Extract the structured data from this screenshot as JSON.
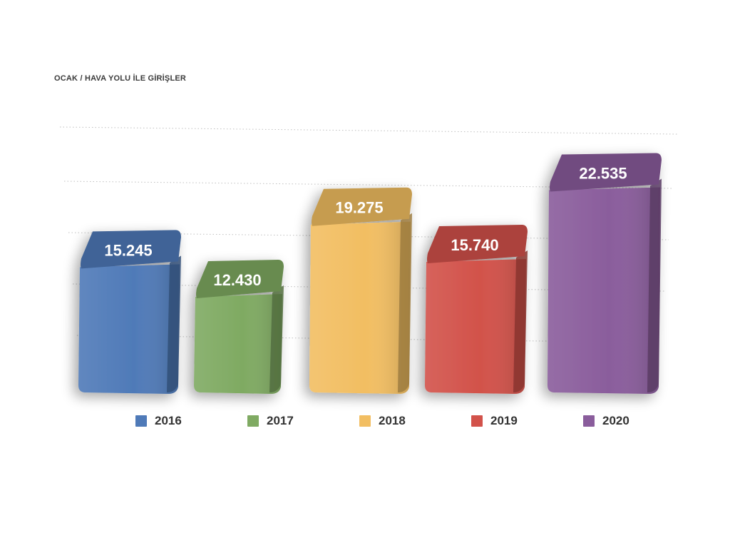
{
  "chart_data": {
    "type": "bar",
    "title": "OCAK / HAVA YOLU İLE GİRİŞLER",
    "categories": [
      "2016",
      "2017",
      "2018",
      "2019",
      "2020"
    ],
    "values": [
      15245,
      12430,
      19275,
      15740,
      22535
    ],
    "value_labels": [
      "15.245",
      "12.430",
      "19.275",
      "15.740",
      "22.535"
    ],
    "colors": [
      "#4f7ab8",
      "#7faa62",
      "#f2be62",
      "#d2524a",
      "#8a5d9c"
    ],
    "ylim": [
      0,
      25000
    ],
    "grid": true,
    "legend": "bottom"
  }
}
